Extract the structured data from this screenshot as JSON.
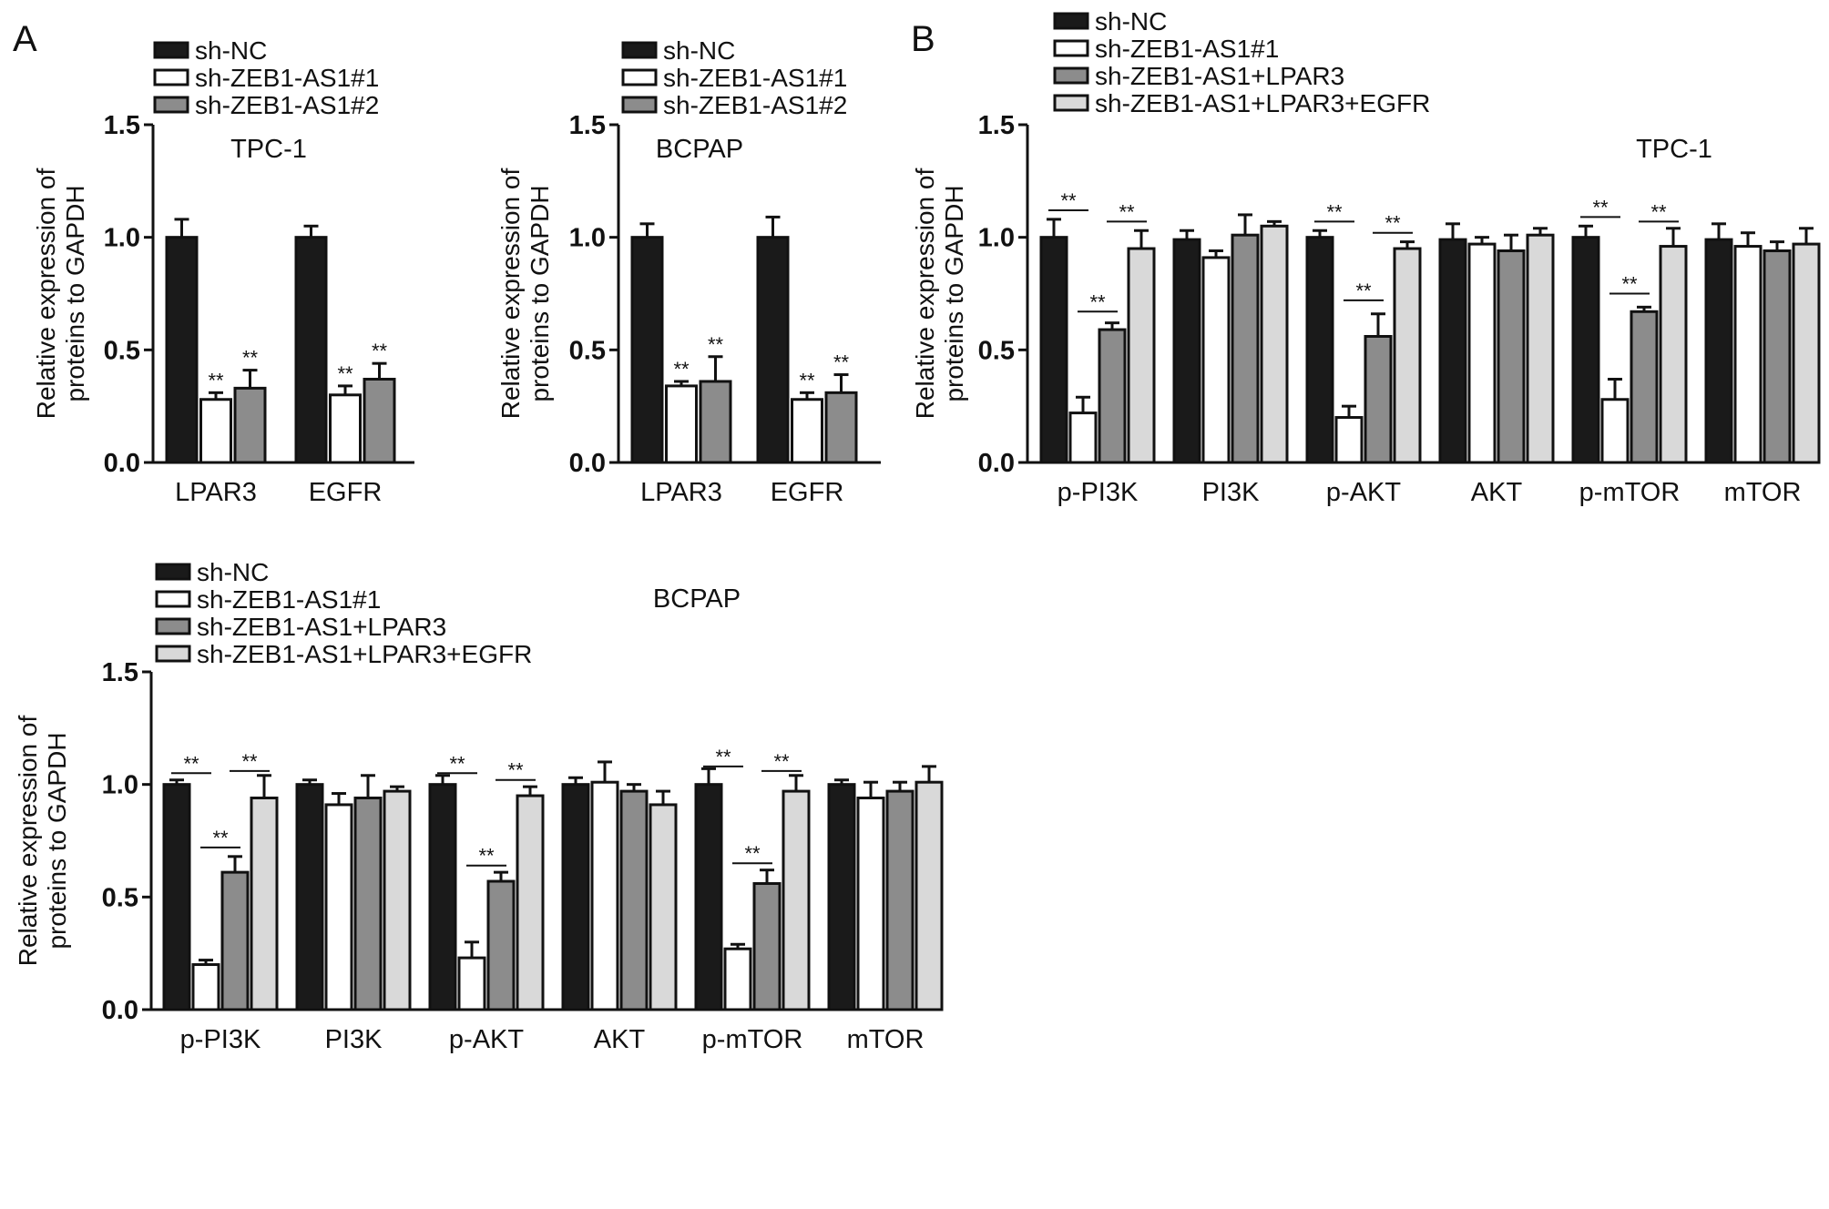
{
  "colors": {
    "sh-NC": "#1a1a1a",
    "sh-ZEB1-AS1#1": "#ffffff",
    "sh-ZEB1-AS1#2": "#8c8c8c",
    "sh-ZEB1-AS1+LPAR3": "#8c8c8c",
    "sh-ZEB1-AS1+LPAR3+EGFR": "#d9d9d9",
    "outline": "#111111"
  },
  "panel_letters": [
    "A",
    "B"
  ],
  "chart_data": [
    {
      "type": "bar",
      "title": "TPC-1",
      "ylabel": "Relative expression of proteins to GAPDH",
      "ylim": [
        0,
        1.5
      ],
      "yticks": [
        "0.0",
        "0.5",
        "1.0",
        "1.5"
      ],
      "categories": [
        "LPAR3",
        "EGFR"
      ],
      "series": [
        {
          "name": "sh-NC",
          "values": [
            1.0,
            1.0
          ],
          "errors": [
            0.08,
            0.05
          ]
        },
        {
          "name": "sh-ZEB1-AS1#1",
          "values": [
            0.28,
            0.3
          ],
          "errors": [
            0.03,
            0.04
          ]
        },
        {
          "name": "sh-ZEB1-AS1#2",
          "values": [
            0.33,
            0.37
          ],
          "errors": [
            0.08,
            0.07
          ]
        }
      ],
      "significance": [
        {
          "category": 0,
          "series": 1,
          "label": "**"
        },
        {
          "category": 0,
          "series": 2,
          "label": "**"
        },
        {
          "category": 1,
          "series": 1,
          "label": "**"
        },
        {
          "category": 1,
          "series": 2,
          "label": "**"
        }
      ]
    },
    {
      "type": "bar",
      "title": "BCPAP",
      "ylabel": "Relative expression of proteins to GAPDH",
      "ylim": [
        0,
        1.5
      ],
      "yticks": [
        "0.0",
        "0.5",
        "1.0",
        "1.5"
      ],
      "categories": [
        "LPAR3",
        "EGFR"
      ],
      "series": [
        {
          "name": "sh-NC",
          "values": [
            1.0,
            1.0
          ],
          "errors": [
            0.06,
            0.09
          ]
        },
        {
          "name": "sh-ZEB1-AS1#1",
          "values": [
            0.34,
            0.28
          ],
          "errors": [
            0.02,
            0.03
          ]
        },
        {
          "name": "sh-ZEB1-AS1#2",
          "values": [
            0.36,
            0.31
          ],
          "errors": [
            0.11,
            0.08
          ]
        }
      ],
      "significance": [
        {
          "category": 0,
          "series": 1,
          "label": "**"
        },
        {
          "category": 0,
          "series": 2,
          "label": "**"
        },
        {
          "category": 1,
          "series": 1,
          "label": "**"
        },
        {
          "category": 1,
          "series": 2,
          "label": "**"
        }
      ]
    },
    {
      "type": "bar",
      "title": "TPC-1",
      "ylabel": "Relative expression of proteins to GAPDH",
      "ylim": [
        0,
        1.5
      ],
      "yticks": [
        "0.0",
        "0.5",
        "1.0",
        "1.5"
      ],
      "categories": [
        "p-PI3K",
        "PI3K",
        "p-AKT",
        "AKT",
        "p-mTOR",
        "mTOR"
      ],
      "series": [
        {
          "name": "sh-NC",
          "values": [
            1.0,
            0.99,
            1.0,
            0.99,
            1.0,
            0.99
          ],
          "errors": [
            0.08,
            0.04,
            0.03,
            0.07,
            0.05,
            0.07
          ]
        },
        {
          "name": "sh-ZEB1-AS1#1",
          "values": [
            0.22,
            0.91,
            0.2,
            0.97,
            0.28,
            0.96
          ],
          "errors": [
            0.07,
            0.03,
            0.05,
            0.03,
            0.09,
            0.06
          ]
        },
        {
          "name": "sh-ZEB1-AS1+LPAR3",
          "values": [
            0.59,
            1.01,
            0.56,
            0.94,
            0.67,
            0.94
          ],
          "errors": [
            0.03,
            0.09,
            0.1,
            0.07,
            0.02,
            0.04
          ]
        },
        {
          "name": "sh-ZEB1-AS1+LPAR3+EGFR",
          "values": [
            0.95,
            1.05,
            0.95,
            1.01,
            0.96,
            0.97
          ],
          "errors": [
            0.08,
            0.02,
            0.03,
            0.03,
            0.08,
            0.07
          ]
        }
      ],
      "significance_brackets": [
        {
          "category": 0,
          "from": 0,
          "to": 1,
          "level": 1.12,
          "label": "**"
        },
        {
          "category": 0,
          "from": 2,
          "to": 3,
          "level": 1.07,
          "label": "**"
        },
        {
          "category": 0,
          "from": 1,
          "to": 2,
          "level": 0.67,
          "label": "**"
        },
        {
          "category": 2,
          "from": 0,
          "to": 1,
          "level": 1.07,
          "label": "**"
        },
        {
          "category": 2,
          "from": 2,
          "to": 3,
          "level": 1.02,
          "label": "**"
        },
        {
          "category": 2,
          "from": 1,
          "to": 2,
          "level": 0.72,
          "label": "**"
        },
        {
          "category": 4,
          "from": 0,
          "to": 1,
          "level": 1.09,
          "label": "**"
        },
        {
          "category": 4,
          "from": 2,
          "to": 3,
          "level": 1.07,
          "label": "**"
        },
        {
          "category": 4,
          "from": 1,
          "to": 2,
          "level": 0.75,
          "label": "**"
        }
      ]
    },
    {
      "type": "bar",
      "title": "BCPAP",
      "ylabel": "Relative expression of proteins to GAPDH",
      "ylim": [
        0,
        1.5
      ],
      "yticks": [
        "0.0",
        "0.5",
        "1.0",
        "1.5"
      ],
      "categories": [
        "p-PI3K",
        "PI3K",
        "p-AKT",
        "AKT",
        "p-mTOR",
        "mTOR"
      ],
      "series": [
        {
          "name": "sh-NC",
          "values": [
            1.0,
            1.0,
            1.0,
            1.0,
            1.0,
            1.0
          ],
          "errors": [
            0.02,
            0.02,
            0.04,
            0.03,
            0.07,
            0.02
          ]
        },
        {
          "name": "sh-ZEB1-AS1#1",
          "values": [
            0.2,
            0.91,
            0.23,
            1.01,
            0.27,
            0.94
          ],
          "errors": [
            0.02,
            0.05,
            0.07,
            0.09,
            0.02,
            0.07
          ]
        },
        {
          "name": "sh-ZEB1-AS1+LPAR3",
          "values": [
            0.61,
            0.94,
            0.57,
            0.97,
            0.56,
            0.97
          ],
          "errors": [
            0.07,
            0.1,
            0.04,
            0.03,
            0.06,
            0.04
          ]
        },
        {
          "name": "sh-ZEB1-AS1+LPAR3+EGFR",
          "values": [
            0.94,
            0.97,
            0.95,
            0.91,
            0.97,
            1.01
          ],
          "errors": [
            0.1,
            0.02,
            0.04,
            0.06,
            0.07,
            0.07
          ]
        }
      ],
      "significance_brackets": [
        {
          "category": 0,
          "from": 0,
          "to": 1,
          "level": 1.05,
          "label": "**"
        },
        {
          "category": 0,
          "from": 2,
          "to": 3,
          "level": 1.06,
          "label": "**"
        },
        {
          "category": 0,
          "from": 1,
          "to": 2,
          "level": 0.72,
          "label": "**"
        },
        {
          "category": 2,
          "from": 0,
          "to": 1,
          "level": 1.05,
          "label": "**"
        },
        {
          "category": 2,
          "from": 2,
          "to": 3,
          "level": 1.02,
          "label": "**"
        },
        {
          "category": 2,
          "from": 1,
          "to": 2,
          "level": 0.64,
          "label": "**"
        },
        {
          "category": 4,
          "from": 0,
          "to": 1,
          "level": 1.08,
          "label": "**"
        },
        {
          "category": 4,
          "from": 2,
          "to": 3,
          "level": 1.06,
          "label": "**"
        },
        {
          "category": 4,
          "from": 1,
          "to": 2,
          "level": 0.65,
          "label": "**"
        }
      ]
    }
  ]
}
